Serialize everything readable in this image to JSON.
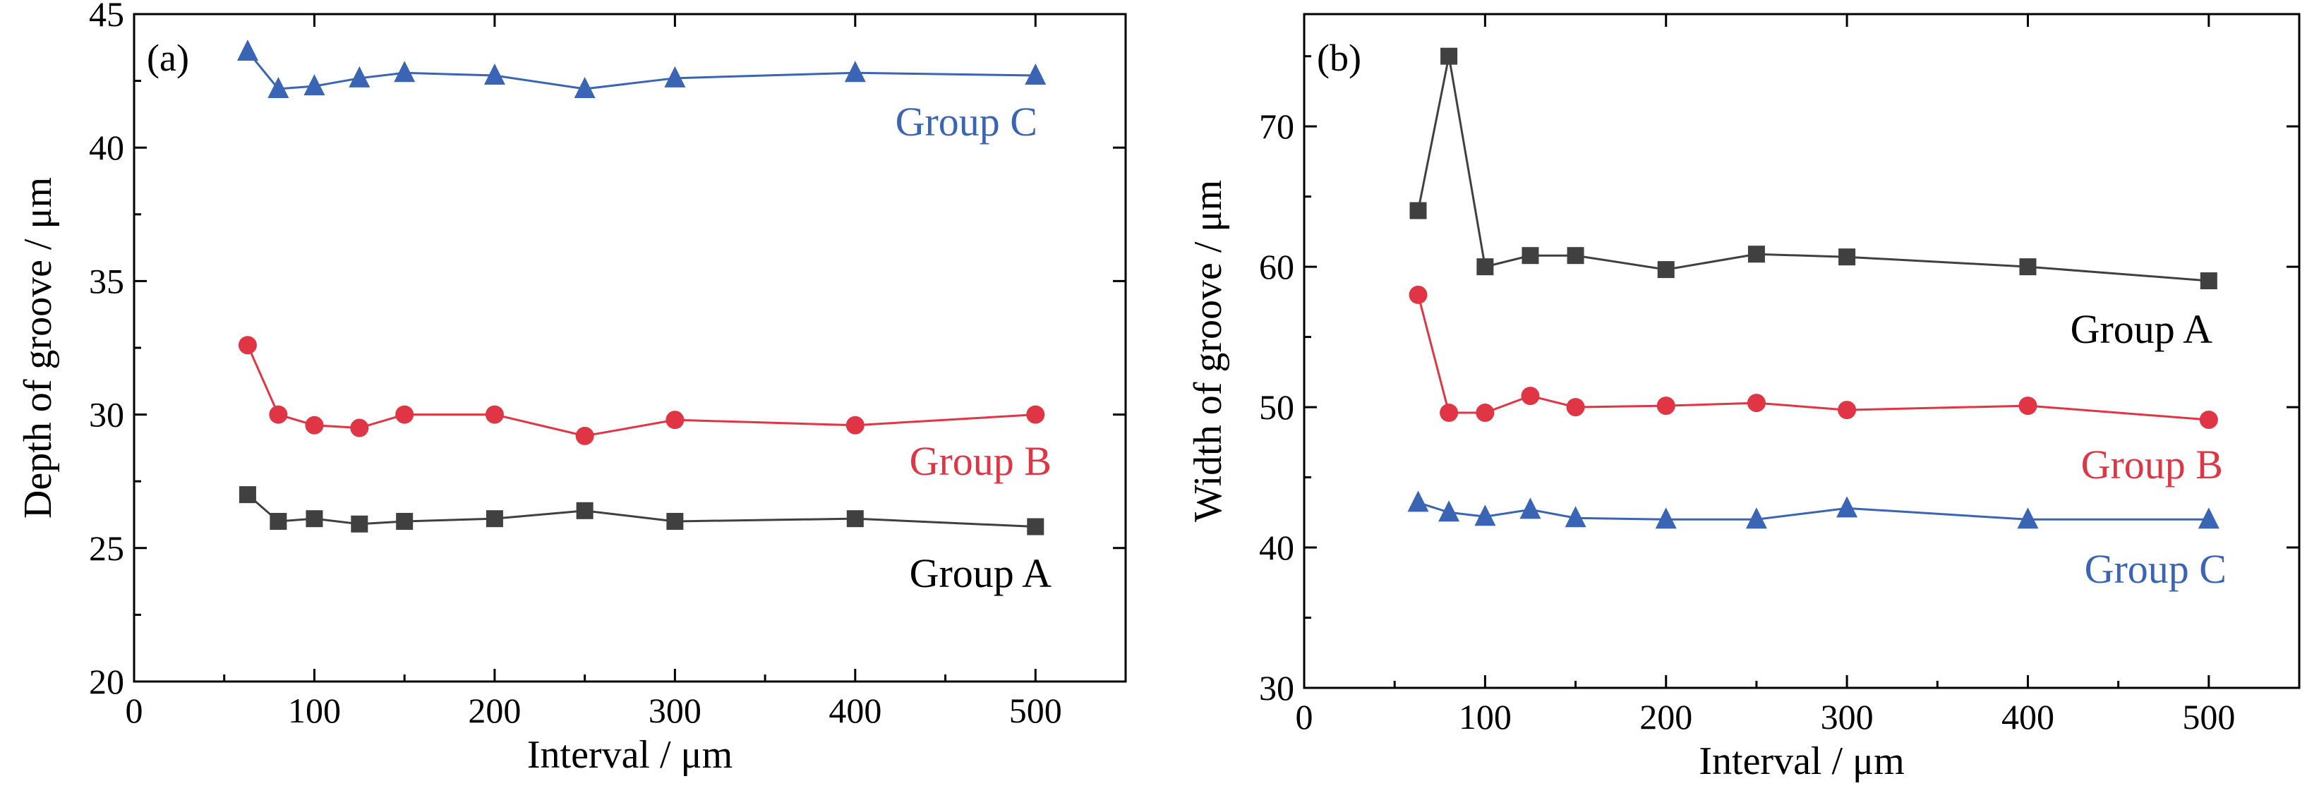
{
  "chart_data": [
    {
      "type": "line",
      "panel_label": "(a)",
      "xlabel": "Interval / μm",
      "ylabel": "Depth of groove / μm",
      "xlim": [
        0,
        550
      ],
      "ylim": [
        20,
        45
      ],
      "xticks": [
        0,
        100,
        200,
        300,
        400,
        500
      ],
      "yticks": [
        20,
        25,
        30,
        35,
        40,
        45
      ],
      "x": [
        63,
        80,
        100,
        125,
        150,
        200,
        250,
        300,
        400,
        500
      ],
      "series": [
        {
          "name": "Group C",
          "color": "#3a64b4",
          "marker": "triangle",
          "values": [
            43.6,
            42.2,
            42.3,
            42.6,
            42.8,
            42.7,
            42.2,
            42.6,
            42.8,
            42.7
          ]
        },
        {
          "name": "Group B",
          "color": "#e03545",
          "marker": "circle",
          "values": [
            32.6,
            30.0,
            29.6,
            29.5,
            30.0,
            30.0,
            29.2,
            29.8,
            29.6,
            30.0
          ]
        },
        {
          "name": "Group A",
          "color": "#404040",
          "marker": "square",
          "values": [
            27.0,
            26.0,
            26.1,
            25.9,
            26.0,
            26.1,
            26.4,
            26.0,
            26.1,
            25.8
          ]
        }
      ]
    },
    {
      "type": "line",
      "panel_label": "(b)",
      "xlabel": "Interval / μm",
      "ylabel": "Width of groove / μm",
      "xlim": [
        0,
        550
      ],
      "ylim": [
        30,
        78
      ],
      "xticks": [
        0,
        100,
        200,
        300,
        400,
        500
      ],
      "yticks": [
        30,
        40,
        50,
        60,
        70
      ],
      "x": [
        63,
        80,
        100,
        125,
        150,
        200,
        250,
        300,
        400,
        500
      ],
      "series": [
        {
          "name": "Group A",
          "color": "#404040",
          "marker": "square",
          "values": [
            64.0,
            75.0,
            60.0,
            60.8,
            60.8,
            59.8,
            60.9,
            60.7,
            60.0,
            59.0
          ]
        },
        {
          "name": "Group B",
          "color": "#e03545",
          "marker": "circle",
          "values": [
            58.0,
            49.6,
            49.6,
            50.8,
            50.0,
            50.1,
            50.3,
            49.8,
            50.1,
            49.1
          ]
        },
        {
          "name": "Group C",
          "color": "#3a64b4",
          "marker": "triangle",
          "values": [
            43.2,
            42.5,
            42.2,
            42.7,
            42.1,
            42.0,
            42.0,
            42.8,
            42.0,
            42.0
          ]
        }
      ]
    }
  ]
}
